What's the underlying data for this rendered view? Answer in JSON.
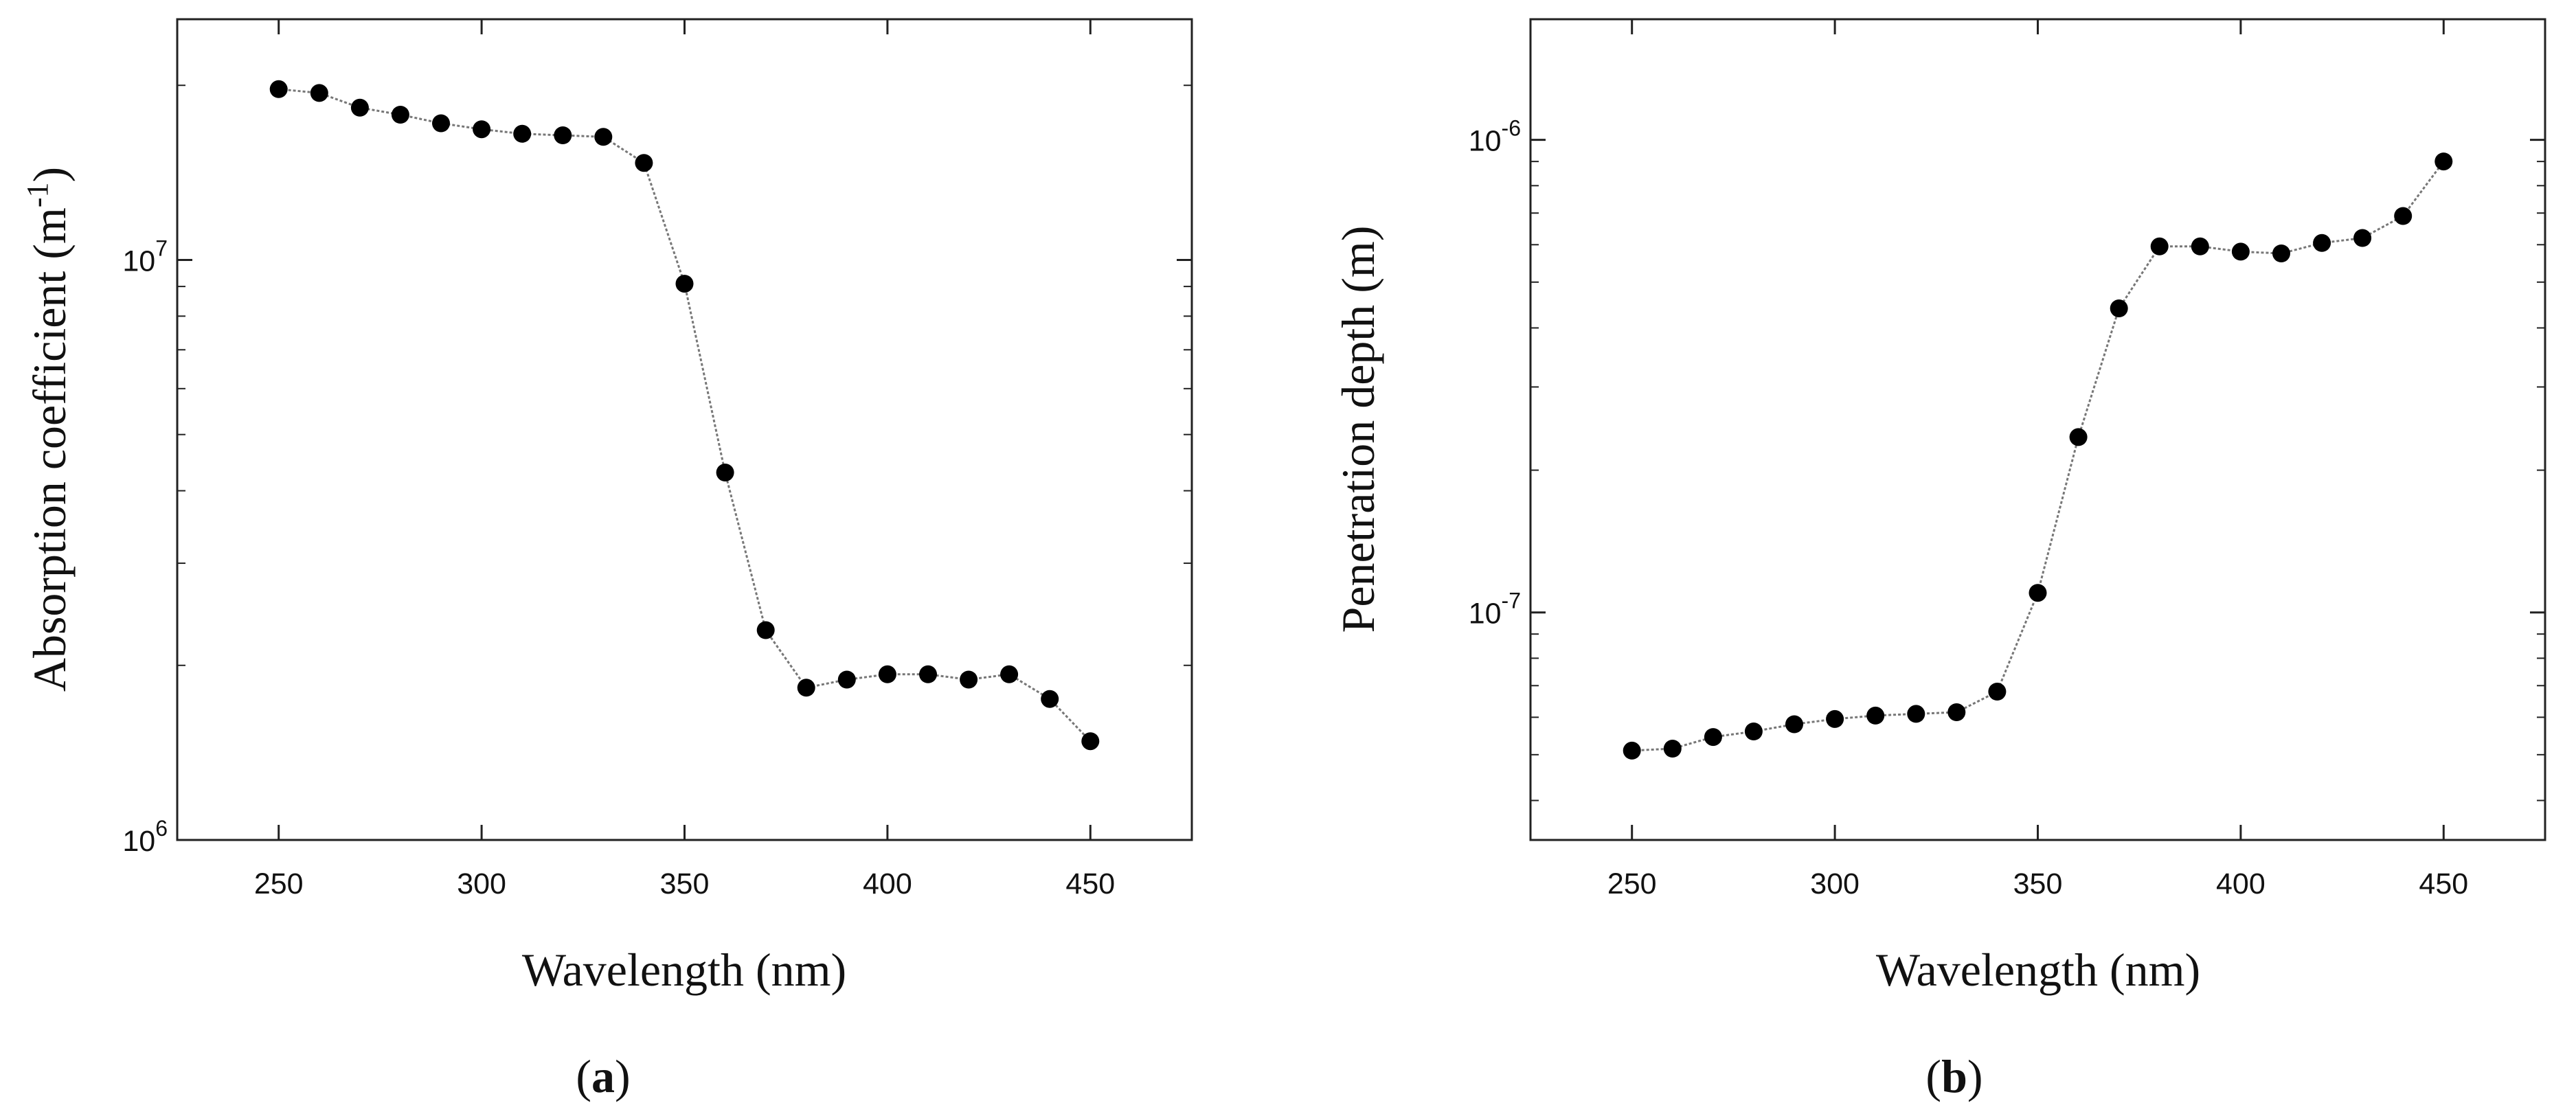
{
  "chart_data": [
    {
      "id": "a",
      "type": "line",
      "panel_label": "a",
      "xlabel": "Wavelength (nm)",
      "ylabel_main": "Absorption coefficient (m",
      "ylabel_sup": "-1",
      "ylabel_tail": ")",
      "yscale": "log",
      "xlim": [
        225,
        475
      ],
      "ylim": [
        1000000,
        26000000
      ],
      "x_ticks": [
        250,
        300,
        350,
        400,
        450
      ],
      "x_tick_labels": [
        "250",
        "300",
        "350",
        "400",
        "450"
      ],
      "y_major_ticks": [
        {
          "value": 1000000,
          "base": "10",
          "exp": "6"
        },
        {
          "value": 10000000,
          "base": "10",
          "exp": "7"
        }
      ],
      "x": [
        250,
        260,
        270,
        280,
        290,
        300,
        310,
        320,
        330,
        340,
        350,
        360,
        370,
        380,
        390,
        400,
        410,
        420,
        430,
        440,
        450
      ],
      "y": [
        19700000,
        19400000,
        18300000,
        17800000,
        17200000,
        16800000,
        16500000,
        16400000,
        16300000,
        14700000,
        9100000,
        4300000,
        2300000,
        1830000,
        1890000,
        1930000,
        1930000,
        1890000,
        1930000,
        1750000,
        1480000
      ]
    },
    {
      "id": "b",
      "type": "line",
      "panel_label": "b",
      "xlabel": "Wavelength (nm)",
      "ylabel": "Penetration depth (m)",
      "yscale": "log",
      "xlim": [
        225,
        475
      ],
      "ylim": [
        3.3e-08,
        1.8e-06
      ],
      "x_ticks": [
        250,
        300,
        350,
        400,
        450
      ],
      "x_tick_labels": [
        "250",
        "300",
        "350",
        "400",
        "450"
      ],
      "y_major_ticks": [
        {
          "value": 1e-07,
          "base": "10",
          "exp": "-7"
        },
        {
          "value": 1e-06,
          "base": "10",
          "exp": "-6"
        }
      ],
      "x": [
        250,
        260,
        270,
        280,
        290,
        300,
        310,
        320,
        330,
        340,
        350,
        360,
        370,
        380,
        390,
        400,
        410,
        420,
        430,
        440,
        450
      ],
      "y": [
        5.1e-08,
        5.15e-08,
        5.45e-08,
        5.6e-08,
        5.8e-08,
        5.95e-08,
        6.05e-08,
        6.1e-08,
        6.15e-08,
        6.8e-08,
        1.1e-07,
        2.35e-07,
        4.4e-07,
        5.95e-07,
        5.95e-07,
        5.8e-07,
        5.75e-07,
        6.05e-07,
        6.2e-07,
        6.9e-07,
        9e-07
      ]
    }
  ]
}
